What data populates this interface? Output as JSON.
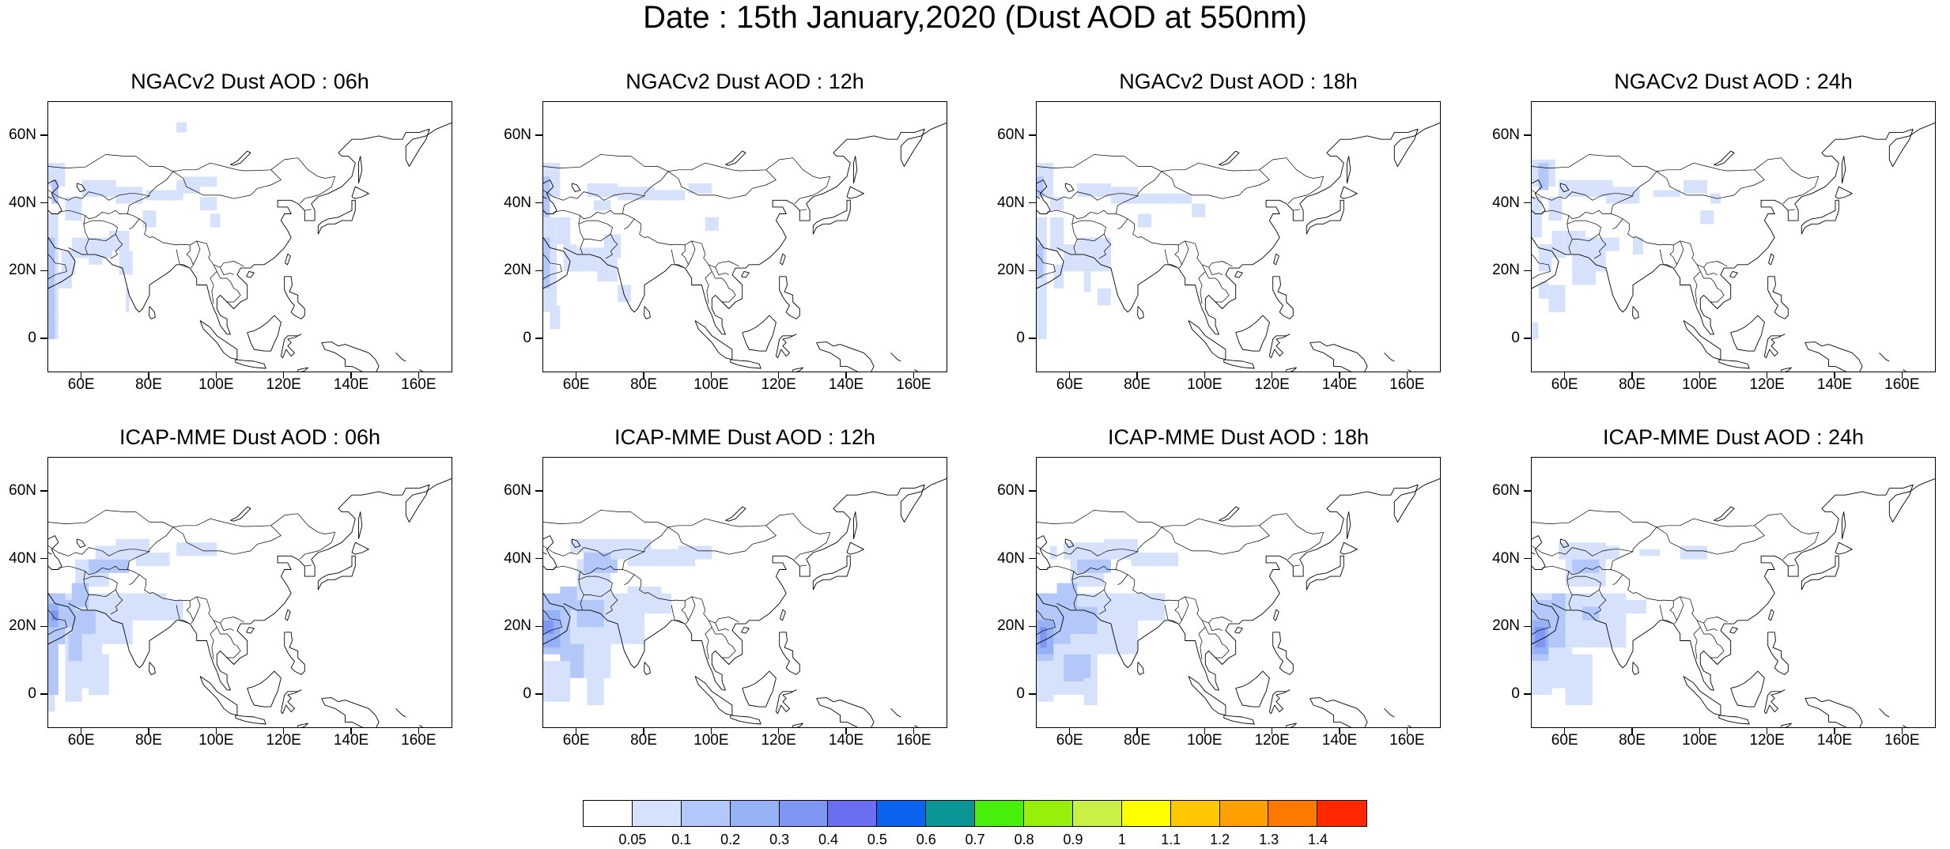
{
  "figure": {
    "title": "Date : 15th January,2020 (Dust AOD at 550nm)"
  },
  "axes": {
    "lat_ticks": [
      "60N",
      "40N",
      "20N",
      "0"
    ],
    "lat_values": [
      60,
      40,
      20,
      0
    ],
    "lon_ticks": [
      "60E",
      "80E",
      "100E",
      "120E",
      "140E",
      "160E"
    ],
    "lon_values": [
      60,
      80,
      100,
      120,
      140,
      160
    ],
    "lon_range": [
      50,
      170
    ],
    "lat_range": [
      -10,
      70
    ]
  },
  "panels": [
    {
      "title": "NGACv2 Dust AOD : 06h",
      "model": "NGACv2",
      "hour": "06h"
    },
    {
      "title": "NGACv2 Dust AOD : 12h",
      "model": "NGACv2",
      "hour": "12h"
    },
    {
      "title": "NGACv2 Dust AOD : 18h",
      "model": "NGACv2",
      "hour": "18h"
    },
    {
      "title": "NGACv2 Dust AOD : 24h",
      "model": "NGACv2",
      "hour": "24h"
    },
    {
      "title": "ICAP-MME Dust AOD : 06h",
      "model": "ICAP-MME",
      "hour": "06h"
    },
    {
      "title": "ICAP-MME Dust AOD : 12h",
      "model": "ICAP-MME",
      "hour": "12h"
    },
    {
      "title": "ICAP-MME Dust AOD : 18h",
      "model": "ICAP-MME",
      "hour": "18h"
    },
    {
      "title": "ICAP-MME Dust AOD : 24h",
      "model": "ICAP-MME",
      "hour": "24h"
    }
  ],
  "colorbar": {
    "labels": [
      "0.05",
      "0.1",
      "0.2",
      "0.3",
      "0.4",
      "0.5",
      "0.6",
      "0.7",
      "0.8",
      "0.9",
      "1",
      "1.1",
      "1.2",
      "1.3",
      "1.4"
    ],
    "colors": [
      "#ffffff",
      "#d6e2fc",
      "#b4c7f9",
      "#96b2f6",
      "#7f96f3",
      "#6a6ef0",
      "#0a64f0",
      "#0a9696",
      "#46f00a",
      "#96f00a",
      "#c8f046",
      "#ffff00",
      "#ffc800",
      "#ffa000",
      "#ff7800",
      "#ff2800"
    ]
  }
}
